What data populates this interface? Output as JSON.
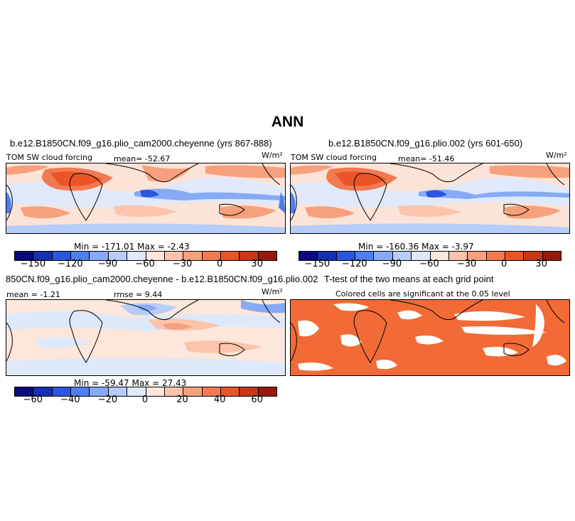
{
  "title": "ANN",
  "panels": [
    {
      "title": "b.e12.B1850CN.f09_g16.plio_cam2000.cheyenne (yrs 867-888)",
      "left_label": "TOM SW cloud forcing",
      "mean_label": "mean= -52.67",
      "units": "W/m²",
      "minmax": "Min = -171.01  Max = -2.43"
    },
    {
      "title": "b.e12.B1850CN.f09_g16.plio.002 (yrs 601-650)",
      "left_label": "TOM SW cloud forcing",
      "mean_label": "mean= -51.46",
      "units": "W/m²",
      "minmax": "Min = -160.36  Max = -3.97"
    },
    {
      "title": "850CN.f09_g16.plio_cam2000.cheyenne - b.e12.B1850CN.f09_g16.plio.002",
      "left_label": "mean = -1.21",
      "mean_label": "rmse = 9.44",
      "units": "W/m²",
      "minmax": "Min = -59.47  Max = 27.43"
    },
    {
      "title": "T-test of the two means at each grid point",
      "subtitle": "Colored cells are significant at the 0.05 level"
    }
  ],
  "colorbar_top": {
    "colors": [
      "#0a0a7a",
      "#1530b0",
      "#2b55e0",
      "#4f7fef",
      "#86aaf5",
      "#b5cdf8",
      "#dde8fb",
      "#fde6da",
      "#fbc4ab",
      "#f7a07d",
      "#f27a50",
      "#ea5427",
      "#c93516",
      "#961a0c"
    ],
    "ticks": [
      "-150",
      "-120",
      "-90",
      "-60",
      "-30",
      "0",
      "30"
    ]
  },
  "colorbar_diff": {
    "colors": [
      "#0a0a7a",
      "#1530b0",
      "#2b55e0",
      "#4f7fef",
      "#86aaf5",
      "#b5cdf8",
      "#dde8fb",
      "#fde6da",
      "#fbc4ab",
      "#f7a07d",
      "#f27a50",
      "#ea5427",
      "#c93516",
      "#961a0c"
    ],
    "ticks": [
      "-60",
      "-40",
      "-20",
      "0",
      "20",
      "40",
      "60"
    ]
  },
  "chart_data": [
    {
      "type": "heatmap",
      "title": "b.e12.B1850CN.f09_g16.plio_cam2000.cheyenne (yrs 867-888)",
      "variable": "TOM SW cloud forcing",
      "units": "W/m2",
      "mean": -52.67,
      "min": -171.01,
      "max": -2.43,
      "contour_levels": [
        -165,
        -150,
        -135,
        -120,
        -105,
        -90,
        -75,
        -60,
        -45,
        -30,
        -15,
        0,
        15,
        30,
        45
      ]
    },
    {
      "type": "heatmap",
      "title": "b.e12.B1850CN.f09_g16.plio.002 (yrs 601-650)",
      "variable": "TOM SW cloud forcing",
      "units": "W/m2",
      "mean": -51.46,
      "min": -160.36,
      "max": -3.97,
      "contour_levels": [
        -165,
        -150,
        -135,
        -120,
        -105,
        -90,
        -75,
        -60,
        -45,
        -30,
        -15,
        0,
        15,
        30,
        45
      ]
    },
    {
      "type": "heatmap",
      "title": "850CN.f09_g16.plio_cam2000.cheyenne - b.e12.B1850CN.f09_g16.plio.002",
      "units": "W/m2",
      "mean": -1.21,
      "rmse": 9.44,
      "min": -59.47,
      "max": 27.43,
      "contour_levels": [
        -70,
        -60,
        -50,
        -40,
        -30,
        -20,
        -10,
        0,
        10,
        20,
        30,
        40,
        50,
        60,
        70
      ]
    },
    {
      "type": "heatmap",
      "title": "T-test of the two means at each grid point",
      "subtitle": "Colored cells are significant at the 0.05 level",
      "significance_level": 0.05
    }
  ]
}
